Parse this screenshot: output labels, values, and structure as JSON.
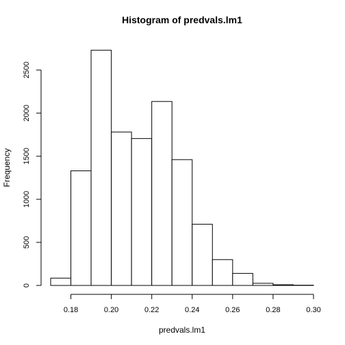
{
  "chart_data": {
    "type": "bar",
    "title": "Histogram of predvals.lm1",
    "xlabel": "predvals.lm1",
    "ylabel": "Frequency",
    "bin_edges": [
      0.17,
      0.18,
      0.19,
      0.2,
      0.21,
      0.22,
      0.23,
      0.24,
      0.25,
      0.26,
      0.27,
      0.28,
      0.29,
      0.3
    ],
    "values": [
      85,
      1330,
      2730,
      1780,
      1705,
      2135,
      1460,
      710,
      300,
      140,
      25,
      8,
      3
    ],
    "xlim": [
      0.17,
      0.3
    ],
    "ylim": [
      0,
      2800
    ],
    "x_ticks": [
      "0.18",
      "0.20",
      "0.22",
      "0.24",
      "0.26",
      "0.28",
      "0.30"
    ],
    "y_ticks": [
      "0",
      "500",
      "1000",
      "1500",
      "2000",
      "2500"
    ],
    "grid": false,
    "legend": "none"
  }
}
